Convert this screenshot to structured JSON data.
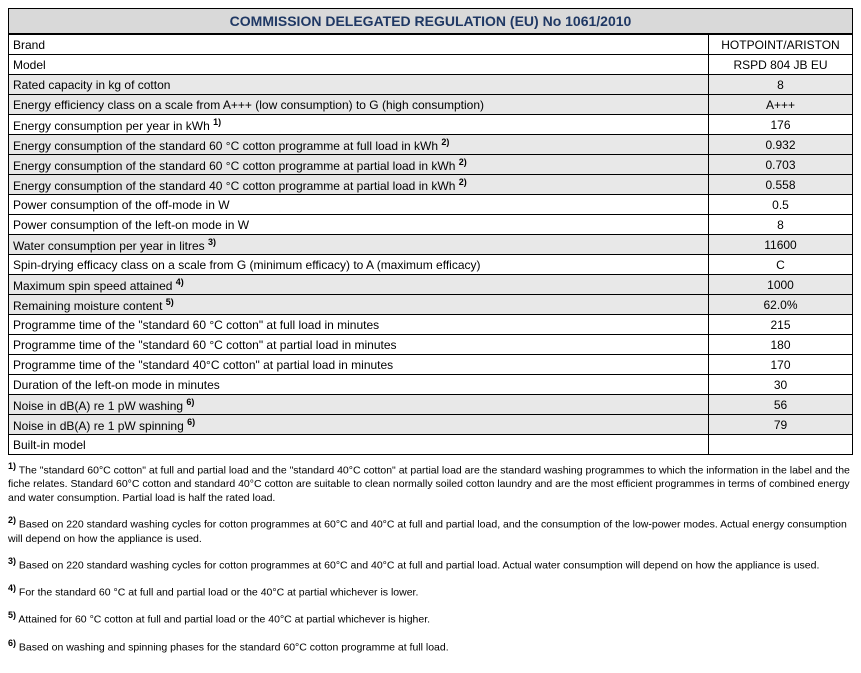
{
  "title": "COMMISSION DELEGATED REGULATION (EU) No 1061/2010",
  "title_color": "#1f3864",
  "shaded_bg": "#e8e8e8",
  "border_color": "#000000",
  "rows": [
    {
      "label": "Brand",
      "value": "HOTPOINT/ARISTON",
      "sup": "",
      "shaded": false
    },
    {
      "label": "Model",
      "value": "RSPD 804 JB EU",
      "sup": "",
      "shaded": false
    },
    {
      "label": "Rated capacity in kg of cotton",
      "value": "8",
      "sup": "",
      "shaded": true
    },
    {
      "label": "Energy efficiency class on a scale from A+++ (low consumption) to G (high consumption)",
      "value": "A+++",
      "sup": "",
      "shaded": true
    },
    {
      "label": "Energy consumption per year in kWh ",
      "value": "176",
      "sup": "1)",
      "shaded": false
    },
    {
      "label": "Energy consumption of the standard 60 °C cotton programme at full load in kWh ",
      "value": "0.932",
      "sup": "2)",
      "shaded": true
    },
    {
      "label": "Energy consumption of the standard 60 °C cotton programme at partial load in kWh ",
      "value": "0.703",
      "sup": "2)",
      "shaded": true
    },
    {
      "label": "Energy consumption of the standard 40 °C cotton programme at partial load in kWh ",
      "value": "0.558",
      "sup": "2)",
      "shaded": true
    },
    {
      "label": "Power consumption of the off-mode in W",
      "value": "0.5",
      "sup": "",
      "shaded": false
    },
    {
      "label": "Power consumption of the left-on mode in W",
      "value": "8",
      "sup": "",
      "shaded": false
    },
    {
      "label": "Water consumption per year in litres ",
      "value": "11600",
      "sup": "3)",
      "shaded": true
    },
    {
      "label": "Spin-drying efficacy class on a scale from G (minimum efficacy) to A (maximum efficacy)",
      "value": "C",
      "sup": "",
      "shaded": false
    },
    {
      "label": "Maximum spin speed attained ",
      "value": "1000",
      "sup": "4)",
      "shaded": true
    },
    {
      "label": "Remaining moisture content ",
      "value": "62.0%",
      "sup": "5)",
      "shaded": true
    },
    {
      "label": "Programme time of the \"standard 60 °C cotton\" at full load in minutes",
      "value": "215",
      "sup": "",
      "shaded": false
    },
    {
      "label": "Programme time of the \"standard 60 °C cotton\" at partial load in minutes",
      "value": "180",
      "sup": "",
      "shaded": false
    },
    {
      "label": "Programme time of the \"standard 40°C cotton\" at partial load in minutes",
      "value": "170",
      "sup": "",
      "shaded": false
    },
    {
      "label": "Duration of the left-on mode in minutes",
      "value": "30",
      "sup": "",
      "shaded": false
    },
    {
      "label": "Noise in dB(A) re 1 pW washing ",
      "value": "56",
      "sup": "6)",
      "shaded": true
    },
    {
      "label": "Noise in dB(A) re 1 pW spinning ",
      "value": "79",
      "sup": "6)",
      "shaded": true
    },
    {
      "label": "Built-in model",
      "value": "",
      "sup": "",
      "shaded": false
    }
  ],
  "footnotes": [
    {
      "num": "1)",
      "text": " The \"standard 60°C cotton\" at full and partial load and the \"standard 40°C cotton\" at partial load are the standard washing programmes to which the information in the label and the fiche relates. Standard 60°C cotton and standard 40°C cotton are suitable to clean normally soiled cotton laundry and are the most efficient programmes in terms of combined energy and water consumption. Partial load is half the rated load."
    },
    {
      "num": "2)",
      "text": " Based on 220 standard washing cycles for cotton programmes at 60°C and 40°C at full and partial load, and the consumption of the low-power modes. Actual energy consumption will depend on how the appliance is used."
    },
    {
      "num": "3)",
      "text": " Based on 220 standard washing cycles for cotton programmes at 60°C and 40°C at full and partial load. Actual water consumption will depend on how the appliance is used."
    },
    {
      "num": "4)",
      "text": " For the standard 60 °C at full and partial load or the 40°C at partial whichever is lower."
    },
    {
      "num": "5)",
      "text": " Attained for 60 °C cotton at full and partial load or the 40°C at partial whichever is higher."
    },
    {
      "num": "6)",
      "text": " Based on washing and spinning phases for the standard 60°C cotton programme at full load."
    }
  ],
  "font_family": "Arial, sans-serif",
  "label_fontsize": 12,
  "footnote_fontsize": 10.5
}
